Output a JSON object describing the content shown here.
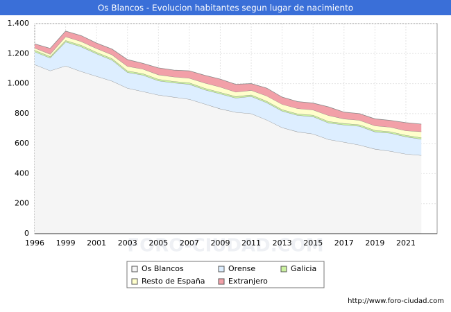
{
  "chart_data": {
    "type": "stacked_area",
    "title": "Os Blancos - Evolucion habitantes segun lugar de nacimiento",
    "categories": [
      "1996",
      null,
      "1999",
      null,
      "2001",
      null,
      "2003",
      null,
      "2005",
      null,
      "2007",
      null,
      "2009",
      null,
      "2011",
      null,
      "2013",
      null,
      "2015",
      null,
      "2017",
      null,
      "2019",
      null,
      "2021",
      null
    ],
    "series": [
      {
        "name": "Os Blancos",
        "color": "#f5f5f5",
        "values": [
          1127,
          1086,
          1118,
          1081,
          1049,
          1017,
          970,
          947,
          924,
          910,
          896,
          864,
          832,
          809,
          800,
          758,
          707,
          679,
          665,
          628,
          610,
          591,
          564,
          550,
          531,
          522
        ]
      },
      {
        "name": "Orense",
        "color": "#ddeeff",
        "values": [
          85,
          85,
          160,
          165,
          150,
          140,
          105,
          110,
          95,
          95,
          100,
          95,
          100,
          95,
          115,
          115,
          110,
          110,
          115,
          110,
          115,
          125,
          115,
          120,
          115,
          108
        ]
      },
      {
        "name": "Galicia",
        "color": "#ccf2a0",
        "values": [
          10,
          10,
          10,
          10,
          10,
          10,
          10,
          10,
          10,
          10,
          10,
          10,
          10,
          10,
          10,
          10,
          10,
          10,
          10,
          10,
          10,
          10,
          10,
          10,
          10,
          10
        ]
      },
      {
        "name": "Resto de España",
        "color": "#ffffcc",
        "values": [
          15,
          15,
          25,
          25,
          25,
          25,
          30,
          30,
          30,
          30,
          30,
          35,
          35,
          30,
          30,
          35,
          35,
          35,
          35,
          40,
          30,
          30,
          30,
          30,
          30,
          40
        ]
      },
      {
        "name": "Extranjero",
        "color": "#f2a0a8",
        "values": [
          28,
          39,
          37,
          39,
          36,
          38,
          45,
          38,
          46,
          45,
          49,
          51,
          53,
          51,
          45,
          52,
          48,
          46,
          45,
          57,
          45,
          44,
          46,
          45,
          54,
          50
        ]
      }
    ],
    "ylim": [
      0,
      1400
    ],
    "yticks": [
      0,
      200,
      400,
      600,
      800,
      {
        "value": 1000,
        "label": "1.000"
      },
      {
        "value": 1200,
        "label": "1.200"
      },
      {
        "value": 1400,
        "label": "1.400"
      }
    ],
    "grid": true,
    "legend": "bottom",
    "watermark": "FORO-CIUDAD.COM",
    "source": "http://www.foro-ciudad.com"
  }
}
